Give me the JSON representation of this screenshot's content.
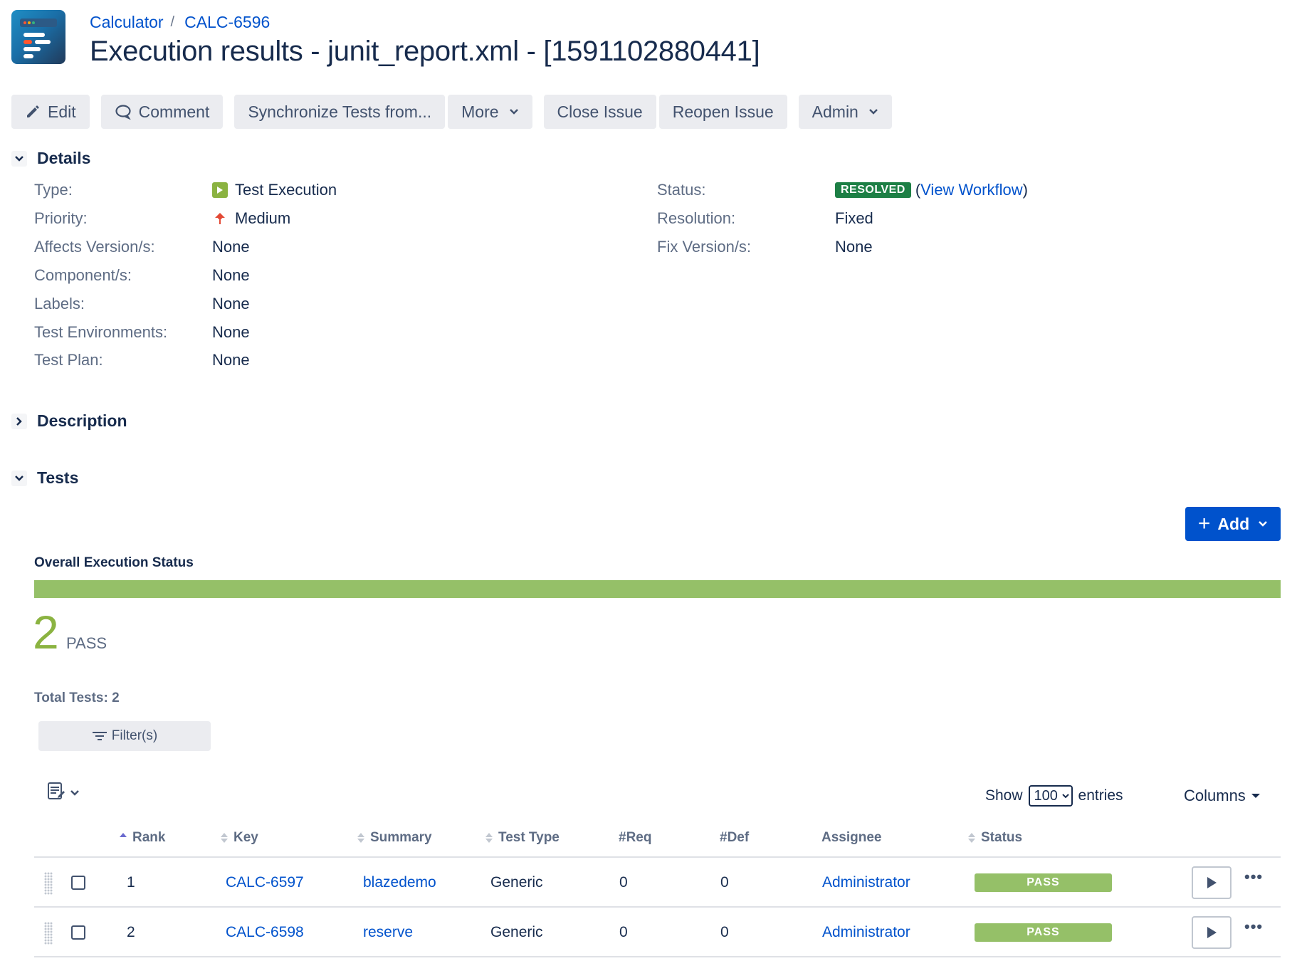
{
  "breadcrumb": {
    "project": "Calculator",
    "separator": "/",
    "parent_key": "CALC-6596"
  },
  "page_title": "Execution results - junit_report.xml - [1591102880441]",
  "toolbar": {
    "edit": "Edit",
    "comment": "Comment",
    "sync": "Synchronize Tests from...",
    "more": "More",
    "close_issue": "Close Issue",
    "reopen_issue": "Reopen Issue",
    "admin": "Admin"
  },
  "details": {
    "heading": "Details",
    "left": [
      {
        "label": "Type:",
        "value": "Test Execution"
      },
      {
        "label": "Priority:",
        "value": "Medium"
      },
      {
        "label": "Affects Version/s:",
        "value": "None"
      },
      {
        "label": "Component/s:",
        "value": "None"
      },
      {
        "label": "Labels:",
        "value": "None"
      },
      {
        "label": "Test Environments:",
        "value": "None"
      },
      {
        "label": "Test Plan:",
        "value": "None"
      }
    ],
    "right": [
      {
        "label": "Status:",
        "value": "RESOLVED",
        "link_open": "(",
        "link": "View Workflow",
        "link_close": ")"
      },
      {
        "label": "Resolution:",
        "value": "Fixed"
      },
      {
        "label": "Fix Version/s:",
        "value": "None"
      }
    ]
  },
  "description": {
    "heading": "Description"
  },
  "tests": {
    "heading": "Tests",
    "add_label": "Add",
    "overall_label": "Overall Execution Status",
    "progress_pass_fraction": 1.0,
    "pass_count": "2",
    "pass_label": "PASS",
    "total_tests": "Total Tests: 2",
    "filter_label": "Filter(s)",
    "show_label": "Show",
    "entries_value": "100",
    "entries_label": "entries",
    "columns_label": "Columns",
    "headers": {
      "rank": "Rank",
      "key": "Key",
      "summary": "Summary",
      "test_type": "Test Type",
      "req": "#Req",
      "def": "#Def",
      "assignee": "Assignee",
      "status": "Status"
    },
    "rows": [
      {
        "rank": "1",
        "key": "CALC-6597",
        "summary": "blazedemo",
        "test_type": "Generic",
        "req": "0",
        "def": "0",
        "assignee": "Administrator",
        "status": "PASS"
      },
      {
        "rank": "2",
        "key": "CALC-6598",
        "summary": "reserve",
        "test_type": "Generic",
        "req": "0",
        "def": "0",
        "assignee": "Administrator",
        "status": "PASS"
      }
    ]
  },
  "colors": {
    "link": "#0052cc",
    "pass": "#95c068",
    "resolved": "#1d7f45",
    "primary": "#0052cc"
  },
  "icons": {
    "edit": "pencil-icon",
    "comment": "speech-bubble-icon",
    "chevron": "chevron-down-icon",
    "type": "test-execution-icon",
    "priority": "arrow-up-icon",
    "filter": "filter-icon",
    "column_picker": "column-list-icon",
    "run": "play-icon",
    "more": "ellipsis-icon"
  }
}
